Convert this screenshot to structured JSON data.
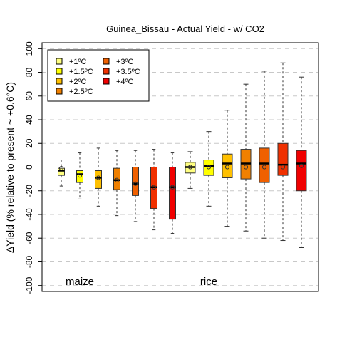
{
  "chart_data": {
    "type": "boxplot",
    "title": "Guinea_Bissau - Actual Yield - w/ CO2",
    "ylabel": "ΔYield (% relative to present ~ +0.6°C)",
    "ylim": [
      -105,
      105
    ],
    "yticks": [
      -100,
      -80,
      -60,
      -40,
      -20,
      0,
      20,
      40,
      60,
      80,
      100
    ],
    "grid": true,
    "legend_position": "top-left",
    "legend": [
      {
        "label": "+1ºC",
        "color": "#FFFF80"
      },
      {
        "label": "+1.5ºC",
        "color": "#FFFF00"
      },
      {
        "label": "+2ºC",
        "color": "#FFC000"
      },
      {
        "label": "+2.5ºC",
        "color": "#F08000"
      },
      {
        "label": "+3ºC",
        "color": "#F06000"
      },
      {
        "label": "+3.5ºC",
        "color": "#F03000"
      },
      {
        "label": "+4ºC",
        "color": "#F00000"
      }
    ],
    "groups": [
      {
        "name": "maize",
        "boxes": [
          {
            "level": "+1ºC",
            "min": -16,
            "q1": -7,
            "median": -3,
            "q3": -1,
            "max": 6,
            "mean": -1
          },
          {
            "level": "+1.5ºC",
            "min": -27,
            "q1": -13,
            "median": -6,
            "q3": -3,
            "max": 12,
            "mean": -7
          },
          {
            "level": "+2ºC",
            "min": -33,
            "q1": -18,
            "median": -9,
            "q3": -3,
            "max": 16,
            "mean": -9
          },
          {
            "level": "+2.5ºC",
            "min": -41,
            "q1": -19,
            "median": -11,
            "q3": -1,
            "max": 14,
            "mean": -11
          },
          {
            "level": "+3ºC",
            "min": -46,
            "q1": -24,
            "median": -14,
            "q3": 0,
            "max": 14,
            "mean": -14
          },
          {
            "level": "+3.5ºC",
            "min": -53,
            "q1": -35,
            "median": -17,
            "q3": 0,
            "max": 15,
            "mean": -17
          },
          {
            "level": "+4ºC",
            "min": -56,
            "q1": -44,
            "median": -17,
            "q3": 0,
            "max": 12,
            "mean": -17
          }
        ]
      },
      {
        "name": "rice",
        "boxes": [
          {
            "level": "+1ºC",
            "min": -18,
            "q1": -5,
            "median": 0,
            "q3": 4,
            "max": 13,
            "mean": 0
          },
          {
            "level": "+1.5ºC",
            "min": -33,
            "q1": -7,
            "median": 1,
            "q3": 6,
            "max": 30,
            "mean": 0
          },
          {
            "level": "+2ºC",
            "min": -50,
            "q1": -9,
            "median": 3,
            "q3": 11,
            "max": 48,
            "mean": 0
          },
          {
            "level": "+2.5ºC",
            "min": -54,
            "q1": -10,
            "median": 3,
            "q3": 15,
            "max": 70,
            "mean": 0
          },
          {
            "level": "+3ºC",
            "min": -60,
            "q1": -13,
            "median": 3,
            "q3": 16,
            "max": 81,
            "mean": 0
          },
          {
            "level": "+3.5ºC",
            "min": -62,
            "q1": -7,
            "median": 2,
            "q3": 20,
            "max": 88,
            "mean": 0
          },
          {
            "level": "+4ºC",
            "min": -68,
            "q1": -20,
            "median": 3,
            "q3": 14,
            "max": 76,
            "mean": 1
          }
        ]
      }
    ]
  }
}
